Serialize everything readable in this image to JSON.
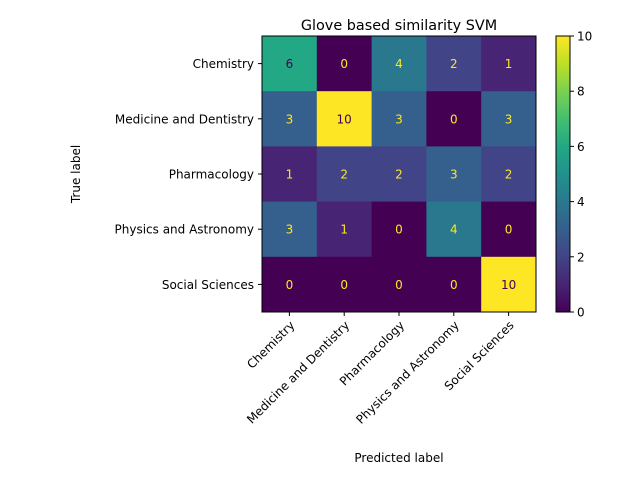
{
  "chart_data": {
    "type": "heatmap",
    "title": "Glove based similarity SVM",
    "xlabel": "Predicted label",
    "ylabel": "True label",
    "x_categories": [
      "Chemistry",
      "Medicine and Dentistry",
      "Pharmacology",
      "Physics and Astronomy",
      "Social Sciences"
    ],
    "y_categories": [
      "Chemistry",
      "Medicine and Dentistry",
      "Pharmacology",
      "Physics and Astronomy",
      "Social Sciences"
    ],
    "values": [
      [
        6,
        0,
        4,
        2,
        1
      ],
      [
        3,
        10,
        3,
        0,
        3
      ],
      [
        1,
        2,
        2,
        3,
        2
      ],
      [
        3,
        1,
        0,
        4,
        0
      ],
      [
        0,
        0,
        0,
        0,
        10
      ]
    ],
    "colormap": "viridis",
    "vmin": 0,
    "vmax": 10,
    "colorbar_ticks": [
      "0",
      "2",
      "4",
      "6",
      "8",
      "10"
    ],
    "x_tick_rotation": 45,
    "grid": false
  }
}
